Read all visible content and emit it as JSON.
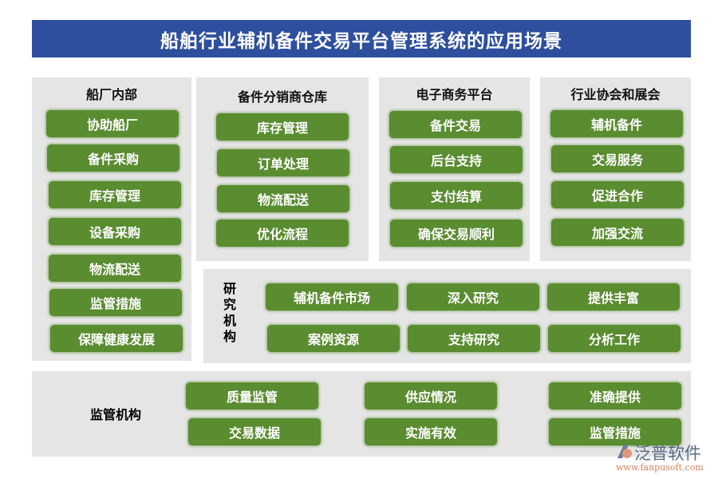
{
  "title": "船舶行业辅机备件交易平台管理系统的应用场景",
  "panels": {
    "shipyard": {
      "title": "船厂内部",
      "items": [
        "协助船厂",
        "备件采购",
        "库存管理",
        "设备采购",
        "物流配送",
        "监管措施",
        "保障健康发展"
      ]
    },
    "warehouse": {
      "title": "备件分销商仓库",
      "items": [
        "库存管理",
        "订单处理",
        "物流配送",
        "优化流程"
      ]
    },
    "ecommerce": {
      "title": "电子商务平台",
      "items": [
        "备件交易",
        "后台支持",
        "支付结算",
        "确保交易顺利"
      ]
    },
    "association": {
      "title": "行业协会和展会",
      "items": [
        "辅机备件",
        "交易服务",
        "促进合作",
        "加强交流"
      ]
    },
    "research": {
      "title": "研究机构",
      "items": [
        "辅机备件市场",
        "深入研究",
        "提供丰富",
        "案例资源",
        "支持研究",
        "分析工作"
      ]
    },
    "regulator": {
      "title": "监管机构",
      "items": [
        "质量监管",
        "供应情况",
        "准确提供",
        "交易数据",
        "实施有效",
        "监管措施"
      ]
    }
  },
  "logo": {
    "name": "泛普软件",
    "url": "www.fanpusoft.com"
  },
  "colors": {
    "title_bar": "#2d4f9e",
    "button": "#5a8c30",
    "panel": "#e5e5e5"
  }
}
